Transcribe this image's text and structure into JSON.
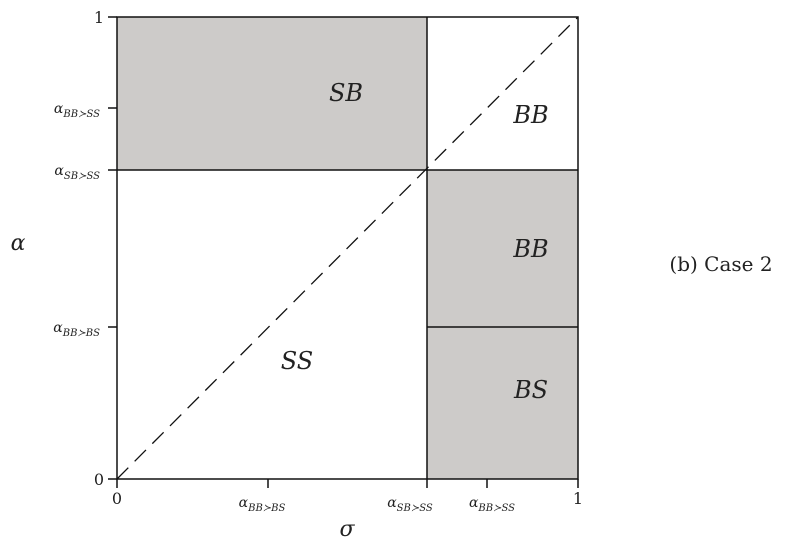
{
  "figure": {
    "caption": "(b) Case 2",
    "x_axis": {
      "title": "σ",
      "ticks": [
        {
          "value": 0,
          "label": "0"
        },
        {
          "value": 0.333,
          "label": "α_{BB≻BS}"
        },
        {
          "value": 0.667,
          "label": "α_{SB≻SS}"
        },
        {
          "value": 0.8,
          "label": "α_{BB≻SS}"
        },
        {
          "value": 1,
          "label": "1"
        }
      ]
    },
    "y_axis": {
      "title": "α",
      "ticks": [
        {
          "value": 0,
          "label": "0"
        },
        {
          "value": 0.333,
          "label": "α_{BB≻BS}"
        },
        {
          "value": 0.667,
          "label": "α_{SB≻SS}"
        },
        {
          "value": 0.833,
          "label": "α_{BB≻SS}"
        },
        {
          "value": 1,
          "label": "1"
        }
      ]
    },
    "regions": [
      {
        "id": "sb",
        "label": "SB",
        "shaded": true
      },
      {
        "id": "bb-top",
        "label": "BB",
        "shaded": false
      },
      {
        "id": "ss",
        "label": "SS",
        "shaded": false
      },
      {
        "id": "bb-mid",
        "label": "BB",
        "shaded": true
      },
      {
        "id": "bs",
        "label": "BS",
        "shaded": true
      }
    ],
    "diagonal": "dashed",
    "colors": {
      "shade": "#cdcbc9",
      "line": "#111111"
    }
  }
}
